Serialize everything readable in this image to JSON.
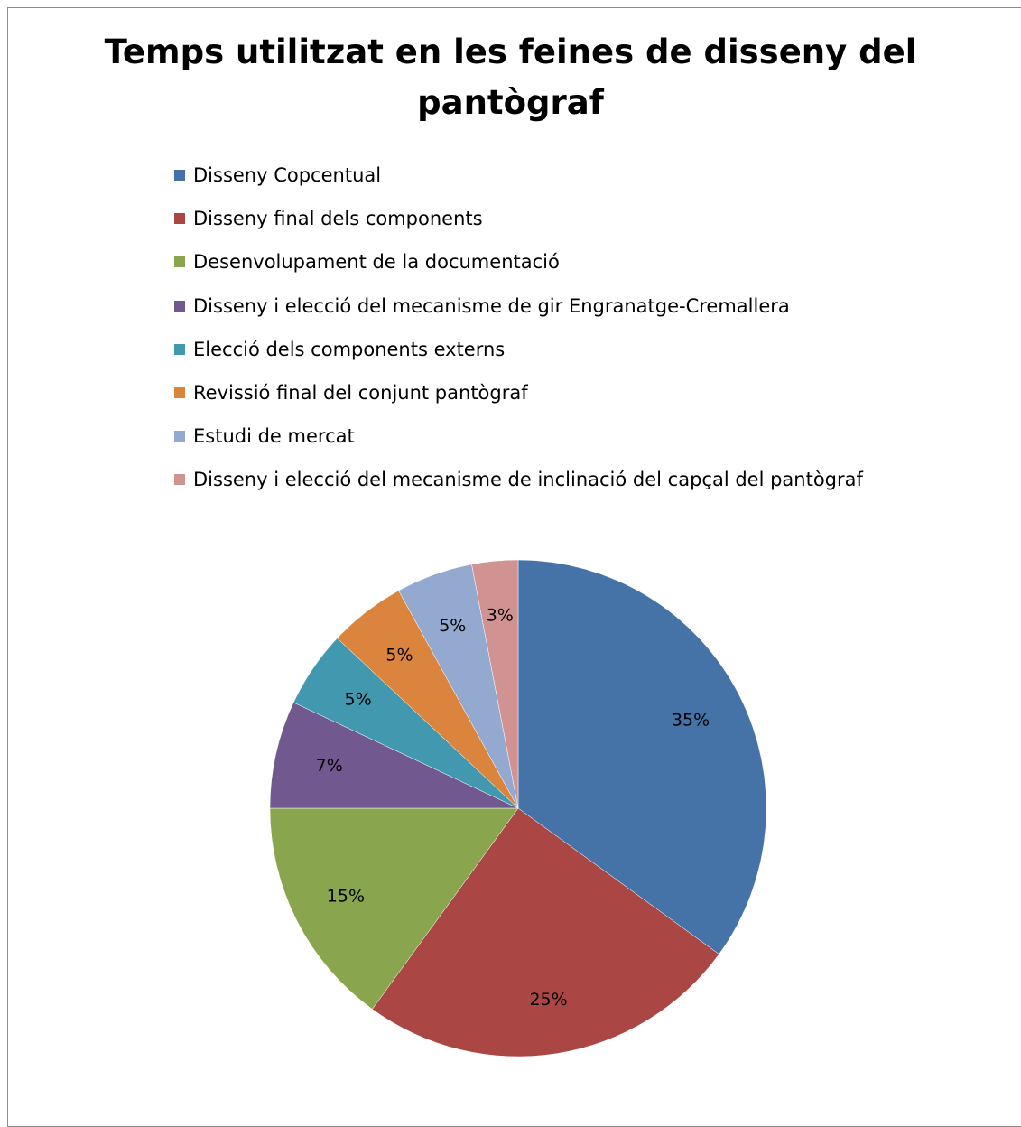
{
  "chart_data": {
    "type": "pie",
    "title": "Temps utilitzat en les feines de disseny del pantògraf",
    "legend_position": "top",
    "categories": [
      "Disseny Copcentual",
      "Disseny final dels components",
      "Desenvolupament de la documentació",
      "Disseny i elecció del mecanisme de gir Engranatge-Cremallera",
      "Elecció dels components externs",
      "Revissió final del conjunt pantògraf",
      "Estudi de mercat",
      "Disseny i elecció del mecanisme de inclinació del capçal del pantògraf"
    ],
    "values": [
      35,
      25,
      15,
      7,
      5,
      5,
      5,
      3
    ],
    "data_labels": [
      "35%",
      "25%",
      "15%",
      "7%",
      "5%",
      "5%",
      "5%",
      "3%"
    ],
    "colors": [
      "#4572A7",
      "#AA4643",
      "#89A54E",
      "#71588F",
      "#4198AF",
      "#DB843D",
      "#93A9CF",
      "#D19392"
    ]
  }
}
